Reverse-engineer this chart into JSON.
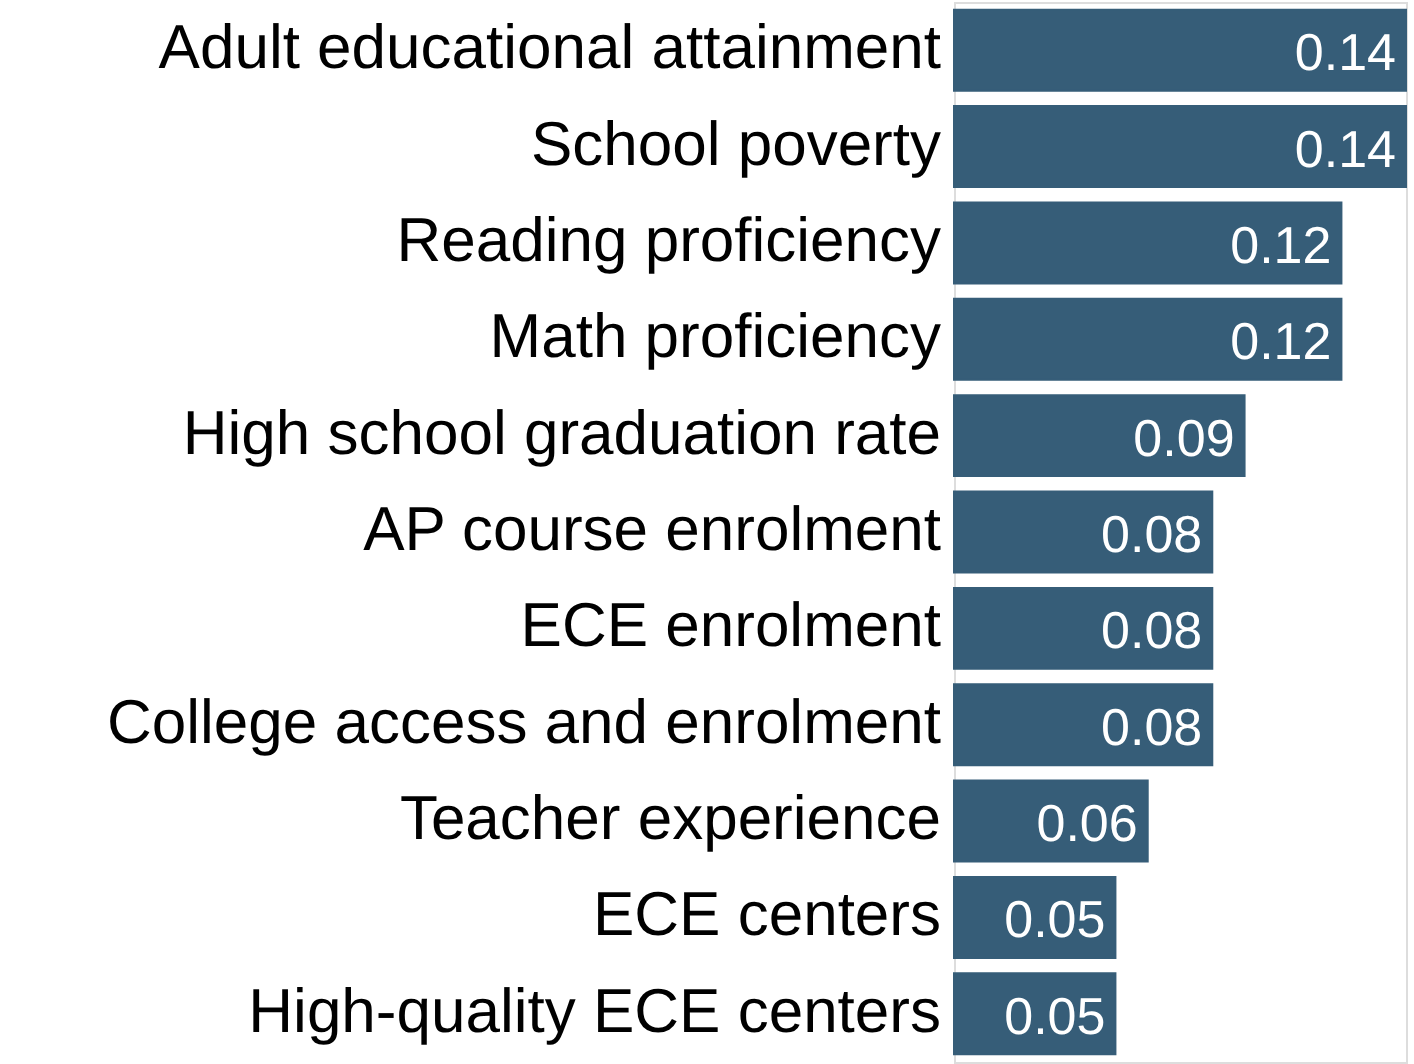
{
  "chart_data": {
    "type": "bar",
    "orientation": "horizontal",
    "categories": [
      "Adult educational attainment",
      "School poverty",
      "Reading proficiency",
      "Math proficiency",
      "High school graduation rate",
      "AP course enrolment",
      "ECE enrolment",
      "College access and enrolment",
      "Teacher experience",
      "ECE centers",
      "High-quality ECE centers"
    ],
    "values": [
      0.14,
      0.14,
      0.12,
      0.12,
      0.09,
      0.08,
      0.08,
      0.08,
      0.06,
      0.05,
      0.05
    ],
    "color": "#365d78",
    "data_labels": true
  }
}
